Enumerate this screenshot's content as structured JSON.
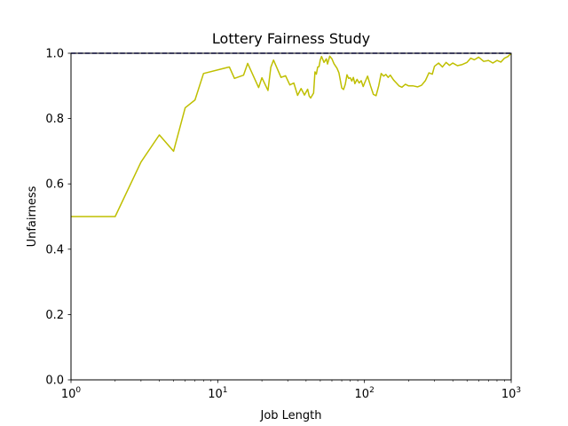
{
  "chart_data": {
    "type": "line",
    "title": "Lottery Fairness Study",
    "xlabel": "Job Length",
    "ylabel": "Unfairness",
    "xscale": "log",
    "xlim": [
      1,
      1000
    ],
    "ylim": [
      0,
      1
    ],
    "grid": false,
    "x_ticks": [
      {
        "value": 1,
        "base": "10",
        "exp": "0"
      },
      {
        "value": 10,
        "base": "10",
        "exp": "1"
      },
      {
        "value": 100,
        "base": "10",
        "exp": "2"
      },
      {
        "value": 1000,
        "base": "10",
        "exp": "3"
      }
    ],
    "y_ticks": [
      {
        "value": 0,
        "label": "0.0"
      },
      {
        "value": 0.2,
        "label": "0.2"
      },
      {
        "value": 0.4,
        "label": "0.4"
      },
      {
        "value": 0.6,
        "label": "0.6"
      },
      {
        "value": 0.8,
        "label": "0.8"
      },
      {
        "value": 1.0,
        "label": "1.0"
      }
    ],
    "series": [
      {
        "color": "#bfbf00",
        "style": "solid",
        "points": [
          [
            1,
            0.5
          ],
          [
            2,
            0.5
          ],
          [
            3,
            0.667
          ],
          [
            4,
            0.75
          ],
          [
            5,
            0.7
          ],
          [
            6,
            0.833
          ],
          [
            7,
            0.857
          ],
          [
            8,
            0.938
          ],
          [
            12,
            0.958
          ],
          [
            13,
            0.923
          ],
          [
            15,
            0.933
          ],
          [
            16,
            0.969
          ],
          [
            19,
            0.895
          ],
          [
            20,
            0.925
          ],
          [
            22,
            0.886
          ],
          [
            23,
            0.957
          ],
          [
            24,
            0.979
          ],
          [
            27,
            0.926
          ],
          [
            29,
            0.931
          ],
          [
            31,
            0.903
          ],
          [
            33,
            0.909
          ],
          [
            35,
            0.871
          ],
          [
            37,
            0.892
          ],
          [
            39,
            0.872
          ],
          [
            41,
            0.89
          ],
          [
            42,
            0.869
          ],
          [
            43,
            0.863
          ],
          [
            45,
            0.878
          ],
          [
            46,
            0.943
          ],
          [
            47,
            0.936
          ],
          [
            48,
            0.958
          ],
          [
            49,
            0.959
          ],
          [
            50,
            0.98
          ],
          [
            51,
            0.99
          ],
          [
            53,
            0.972
          ],
          [
            55,
            0.983
          ],
          [
            56,
            0.967
          ],
          [
            58,
            0.991
          ],
          [
            60,
            0.983
          ],
          [
            62,
            0.968
          ],
          [
            65,
            0.954
          ],
          [
            67,
            0.94
          ],
          [
            70,
            0.894
          ],
          [
            72,
            0.889
          ],
          [
            74,
            0.905
          ],
          [
            76,
            0.934
          ],
          [
            78,
            0.923
          ],
          [
            80,
            0.925
          ],
          [
            82,
            0.915
          ],
          [
            84,
            0.926
          ],
          [
            86,
            0.907
          ],
          [
            89,
            0.92
          ],
          [
            92,
            0.909
          ],
          [
            95,
            0.916
          ],
          [
            98,
            0.898
          ],
          [
            100,
            0.908
          ],
          [
            105,
            0.93
          ],
          [
            110,
            0.9
          ],
          [
            115,
            0.874
          ],
          [
            120,
            0.87
          ],
          [
            125,
            0.9
          ],
          [
            130,
            0.938
          ],
          [
            135,
            0.93
          ],
          [
            140,
            0.935
          ],
          [
            145,
            0.926
          ],
          [
            150,
            0.933
          ],
          [
            158,
            0.918
          ],
          [
            165,
            0.909
          ],
          [
            172,
            0.9
          ],
          [
            180,
            0.896
          ],
          [
            190,
            0.905
          ],
          [
            200,
            0.9
          ],
          [
            215,
            0.9
          ],
          [
            230,
            0.897
          ],
          [
            245,
            0.902
          ],
          [
            260,
            0.916
          ],
          [
            275,
            0.94
          ],
          [
            290,
            0.936
          ],
          [
            300,
            0.96
          ],
          [
            320,
            0.97
          ],
          [
            340,
            0.958
          ],
          [
            360,
            0.972
          ],
          [
            380,
            0.963
          ],
          [
            400,
            0.97
          ],
          [
            430,
            0.962
          ],
          [
            460,
            0.965
          ],
          [
            500,
            0.972
          ],
          [
            530,
            0.985
          ],
          [
            560,
            0.98
          ],
          [
            600,
            0.988
          ],
          [
            650,
            0.975
          ],
          [
            700,
            0.978
          ],
          [
            750,
            0.97
          ],
          [
            800,
            0.978
          ],
          [
            850,
            0.973
          ],
          [
            900,
            0.985
          ],
          [
            950,
            0.99
          ],
          [
            1000,
            1.0
          ]
        ]
      },
      {
        "color": "#00007f",
        "style": "dashed",
        "points": [
          [
            1,
            1.0
          ],
          [
            1000,
            1.0
          ]
        ]
      }
    ]
  }
}
